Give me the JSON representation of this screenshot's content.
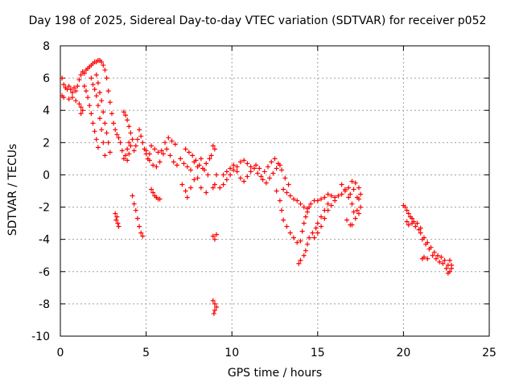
{
  "chart_data": {
    "type": "scatter",
    "title": "Day 198 of 2025, Sidereal Day-to-day VTEC variation (SDTVAR) for receiver p052",
    "xlabel": "GPS time / hours",
    "ylabel": "SDTVAR / TECUs",
    "xlim": [
      0,
      25
    ],
    "ylim": [
      -10,
      8
    ],
    "xticks": [
      "0",
      "5",
      "10",
      "15",
      "20",
      "25"
    ],
    "yticks": [
      "8",
      "6",
      "4",
      "2",
      "0",
      "-2",
      "-4",
      "-6",
      "-8",
      "-10"
    ],
    "grid": true,
    "marker": "+",
    "color": "#ff0000",
    "series": [
      {
        "name": "SDTVAR",
        "points": [
          [
            0.1,
            6.0
          ],
          [
            0.2,
            5.6
          ],
          [
            0.3,
            5.4
          ],
          [
            0.4,
            5.3
          ],
          [
            0.5,
            5.5
          ],
          [
            0.6,
            5.3
          ],
          [
            0.7,
            5.1
          ],
          [
            0.8,
            5.4
          ],
          [
            0.9,
            5.2
          ],
          [
            1.0,
            5.5
          ],
          [
            1.1,
            5.9
          ],
          [
            1.2,
            6.2
          ],
          [
            1.3,
            6.4
          ],
          [
            1.4,
            6.3
          ],
          [
            1.5,
            6.5
          ],
          [
            1.6,
            6.6
          ],
          [
            1.7,
            6.7
          ],
          [
            1.8,
            6.8
          ],
          [
            1.9,
            6.9
          ],
          [
            2.0,
            7.0
          ],
          [
            2.1,
            7.0
          ],
          [
            2.2,
            7.1
          ],
          [
            2.3,
            7.1
          ],
          [
            2.4,
            7.0
          ],
          [
            2.5,
            6.8
          ],
          [
            2.6,
            6.5
          ],
          [
            2.7,
            6.0
          ],
          [
            2.8,
            5.2
          ],
          [
            2.9,
            4.5
          ],
          [
            3.0,
            3.8
          ],
          [
            3.1,
            3.2
          ],
          [
            3.2,
            2.8
          ],
          [
            3.3,
            2.5
          ],
          [
            3.4,
            2.3
          ],
          [
            3.5,
            2.0
          ],
          [
            3.6,
            1.5
          ],
          [
            3.7,
            1.0
          ],
          [
            3.8,
            1.2
          ],
          [
            3.9,
            1.6
          ],
          [
            4.0,
            2.0
          ],
          [
            0.1,
            4.9
          ],
          [
            0.2,
            4.8
          ],
          [
            0.5,
            4.7
          ],
          [
            0.7,
            4.8
          ],
          [
            0.9,
            4.6
          ],
          [
            1.1,
            4.4
          ],
          [
            1.2,
            4.2
          ],
          [
            1.3,
            4.0
          ],
          [
            1.2,
            3.8
          ],
          [
            1.4,
            5.5
          ],
          [
            1.5,
            5.2
          ],
          [
            1.6,
            4.8
          ],
          [
            1.7,
            4.3
          ],
          [
            1.8,
            3.8
          ],
          [
            1.9,
            3.2
          ],
          [
            2.0,
            2.7
          ],
          [
            2.1,
            2.2
          ],
          [
            2.2,
            1.7
          ],
          [
            2.1,
            6.2
          ],
          [
            2.2,
            5.7
          ],
          [
            2.3,
            5.1
          ],
          [
            2.4,
            4.6
          ],
          [
            2.5,
            3.9
          ],
          [
            2.6,
            3.2
          ],
          [
            2.7,
            2.6
          ],
          [
            2.8,
            2.0
          ],
          [
            2.9,
            1.4
          ],
          [
            2.6,
            1.2
          ],
          [
            1.8,
            6.0
          ],
          [
            1.9,
            5.6
          ],
          [
            2.0,
            5.3
          ],
          [
            2.1,
            4.9
          ],
          [
            2.2,
            4.3
          ],
          [
            2.3,
            3.5
          ],
          [
            2.4,
            2.8
          ],
          [
            2.5,
            2.0
          ],
          [
            3.2,
            -2.4
          ],
          [
            3.3,
            -2.6
          ],
          [
            3.25,
            -2.8
          ],
          [
            3.35,
            -3.0
          ],
          [
            3.4,
            -3.2
          ],
          [
            3.7,
            3.9
          ],
          [
            3.8,
            3.7
          ],
          [
            3.9,
            3.4
          ],
          [
            4.0,
            3.0
          ],
          [
            4.1,
            2.6
          ],
          [
            4.2,
            2.2
          ],
          [
            4.1,
            1.8
          ],
          [
            4.0,
            1.3
          ],
          [
            3.9,
            0.9
          ],
          [
            4.3,
            1.5
          ],
          [
            4.4,
            1.8
          ],
          [
            4.5,
            2.2
          ],
          [
            4.6,
            2.8
          ],
          [
            4.7,
            2.4
          ],
          [
            4.8,
            2.0
          ],
          [
            4.9,
            1.6
          ],
          [
            5.0,
            1.3
          ],
          [
            5.1,
            1.0
          ],
          [
            5.2,
            1.3
          ],
          [
            4.2,
            -1.3
          ],
          [
            4.3,
            -1.8
          ],
          [
            4.4,
            -2.2
          ],
          [
            4.5,
            -2.7
          ],
          [
            4.6,
            -3.2
          ],
          [
            4.7,
            -3.6
          ],
          [
            4.8,
            -3.8
          ],
          [
            5.0,
            1.5
          ],
          [
            5.2,
            0.9
          ],
          [
            5.4,
            0.6
          ],
          [
            5.6,
            0.5
          ],
          [
            5.8,
            0.8
          ],
          [
            6.0,
            1.3
          ],
          [
            6.2,
            1.6
          ],
          [
            6.4,
            1.2
          ],
          [
            6.6,
            0.8
          ],
          [
            6.8,
            0.6
          ],
          [
            5.3,
            1.8
          ],
          [
            5.5,
            1.6
          ],
          [
            5.7,
            1.4
          ],
          [
            5.9,
            1.5
          ],
          [
            6.1,
            2.0
          ],
          [
            6.3,
            2.3
          ],
          [
            6.5,
            2.1
          ],
          [
            6.7,
            1.9
          ],
          [
            5.3,
            -0.9
          ],
          [
            5.4,
            -1.1
          ],
          [
            5.5,
            -1.3
          ],
          [
            5.6,
            -1.4
          ],
          [
            5.7,
            -1.5
          ],
          [
            5.8,
            -1.5
          ],
          [
            7.0,
            1.0
          ],
          [
            7.2,
            0.7
          ],
          [
            7.4,
            0.5
          ],
          [
            7.6,
            0.3
          ],
          [
            7.8,
            0.8
          ],
          [
            8.0,
            0.5
          ],
          [
            8.2,
            1.0
          ],
          [
            8.4,
            0.3
          ],
          [
            8.6,
            0.0
          ],
          [
            8.8,
            1.2
          ],
          [
            7.3,
            1.6
          ],
          [
            7.5,
            1.4
          ],
          [
            7.7,
            1.2
          ],
          [
            7.9,
            0.9
          ],
          [
            8.1,
            0.6
          ],
          [
            8.3,
            0.4
          ],
          [
            8.5,
            0.7
          ],
          [
            8.7,
            1.0
          ],
          [
            8.9,
            1.8
          ],
          [
            9.0,
            1.6
          ],
          [
            7.1,
            -0.6
          ],
          [
            7.3,
            -1.0
          ],
          [
            7.4,
            -1.4
          ],
          [
            7.6,
            -0.8
          ],
          [
            7.8,
            -0.3
          ],
          [
            8.0,
            -0.2
          ],
          [
            8.2,
            -0.8
          ],
          [
            8.5,
            -1.1
          ],
          [
            8.9,
            -0.8
          ],
          [
            9.0,
            -0.6
          ],
          [
            9.1,
            0.0
          ],
          [
            8.9,
            -3.8
          ],
          [
            9.0,
            -4.0
          ],
          [
            9.1,
            -3.7
          ],
          [
            8.9,
            -7.8
          ],
          [
            9.0,
            -8.0
          ],
          [
            9.1,
            -8.2
          ],
          [
            9.0,
            -8.4
          ],
          [
            8.95,
            -8.6
          ],
          [
            9.3,
            -0.8
          ],
          [
            9.5,
            -0.6
          ],
          [
            9.7,
            -0.3
          ],
          [
            9.9,
            0.0
          ],
          [
            10.1,
            0.3
          ],
          [
            10.3,
            0.5
          ],
          [
            10.5,
            0.8
          ],
          [
            10.7,
            0.9
          ],
          [
            10.9,
            0.7
          ],
          [
            11.1,
            0.5
          ],
          [
            9.5,
            0.0
          ],
          [
            9.7,
            0.2
          ],
          [
            9.9,
            0.4
          ],
          [
            10.1,
            0.6
          ],
          [
            10.3,
            0.2
          ],
          [
            10.5,
            -0.2
          ],
          [
            10.7,
            -0.4
          ],
          [
            10.9,
            -0.1
          ],
          [
            11.1,
            0.2
          ],
          [
            11.3,
            0.4
          ],
          [
            11.5,
            0.1
          ],
          [
            11.7,
            -0.1
          ],
          [
            11.9,
            0.2
          ],
          [
            12.1,
            0.5
          ],
          [
            12.3,
            0.8
          ],
          [
            12.5,
            1.0
          ],
          [
            12.7,
            0.7
          ],
          [
            12.9,
            0.3
          ],
          [
            13.1,
            -0.2
          ],
          [
            13.3,
            -0.6
          ],
          [
            11.4,
            0.6
          ],
          [
            11.6,
            0.4
          ],
          [
            11.8,
            -0.3
          ],
          [
            12.0,
            -0.5
          ],
          [
            12.2,
            -0.2
          ],
          [
            12.4,
            0.1
          ],
          [
            12.6,
            0.4
          ],
          [
            12.8,
            0.6
          ],
          [
            12.6,
            -1.0
          ],
          [
            12.8,
            -1.6
          ],
          [
            12.9,
            -2.2
          ],
          [
            13.0,
            -2.8
          ],
          [
            13.2,
            -3.2
          ],
          [
            13.4,
            -3.6
          ],
          [
            13.6,
            -3.9
          ],
          [
            13.8,
            -4.2
          ],
          [
            14.0,
            -4.1
          ],
          [
            14.1,
            -3.5
          ],
          [
            13.0,
            -0.9
          ],
          [
            13.2,
            -1.1
          ],
          [
            13.4,
            -1.3
          ],
          [
            13.6,
            -1.5
          ],
          [
            13.8,
            -1.6
          ],
          [
            14.0,
            -1.8
          ],
          [
            14.2,
            -2.0
          ],
          [
            14.4,
            -2.1
          ],
          [
            13.9,
            -5.5
          ],
          [
            14.0,
            -5.3
          ],
          [
            14.2,
            -3.0
          ],
          [
            14.3,
            -2.6
          ],
          [
            14.4,
            -2.3
          ],
          [
            14.5,
            -2.0
          ],
          [
            14.6,
            -1.8
          ],
          [
            14.8,
            -1.6
          ],
          [
            14.2,
            -5.0
          ],
          [
            14.3,
            -4.7
          ],
          [
            14.4,
            -4.3
          ],
          [
            14.5,
            -3.9
          ],
          [
            14.7,
            -3.6
          ],
          [
            14.9,
            -3.3
          ],
          [
            15.0,
            -3.0
          ],
          [
            15.2,
            -2.6
          ],
          [
            15.4,
            -2.2
          ],
          [
            15.6,
            -1.8
          ],
          [
            14.8,
            -3.9
          ],
          [
            15.0,
            -3.6
          ],
          [
            15.2,
            -3.2
          ],
          [
            15.4,
            -2.7
          ],
          [
            15.6,
            -2.2
          ],
          [
            15.8,
            -1.9
          ],
          [
            16.0,
            -1.6
          ],
          [
            15.0,
            -1.6
          ],
          [
            15.2,
            -1.5
          ],
          [
            15.4,
            -1.4
          ],
          [
            15.6,
            -1.2
          ],
          [
            15.8,
            -1.3
          ],
          [
            16.0,
            -1.4
          ],
          [
            16.2,
            -1.3
          ],
          [
            16.4,
            -1.2
          ],
          [
            16.6,
            -1.0
          ],
          [
            16.8,
            -0.8
          ],
          [
            16.9,
            -1.2
          ],
          [
            17.0,
            -1.8
          ],
          [
            17.1,
            -2.3
          ],
          [
            17.2,
            -2.7
          ],
          [
            17.3,
            -2.2
          ],
          [
            17.4,
            -1.5
          ],
          [
            17.0,
            -0.4
          ],
          [
            17.2,
            -0.5
          ],
          [
            17.4,
            -0.8
          ],
          [
            17.5,
            -1.2
          ],
          [
            17.5,
            -2.0
          ],
          [
            17.4,
            -2.4
          ],
          [
            17.3,
            -1.4
          ],
          [
            17.1,
            -0.9
          ],
          [
            16.4,
            -0.6
          ],
          [
            16.6,
            -0.9
          ],
          [
            16.8,
            -1.4
          ],
          [
            17.0,
            -3.1
          ],
          [
            16.7,
            -2.8
          ],
          [
            16.9,
            -3.1
          ],
          [
            20.0,
            -1.9
          ],
          [
            20.1,
            -2.0
          ],
          [
            20.2,
            -2.2
          ],
          [
            20.3,
            -2.4
          ],
          [
            20.4,
            -2.6
          ],
          [
            20.2,
            -2.9
          ],
          [
            20.3,
            -3.1
          ],
          [
            20.5,
            -3.0
          ],
          [
            20.7,
            -3.2
          ],
          [
            20.9,
            -3.4
          ],
          [
            21.0,
            -3.6
          ],
          [
            21.2,
            -3.9
          ],
          [
            21.4,
            -4.2
          ],
          [
            21.6,
            -4.5
          ],
          [
            21.8,
            -4.8
          ],
          [
            22.0,
            -5.0
          ],
          [
            22.2,
            -5.1
          ],
          [
            22.4,
            -5.3
          ],
          [
            22.6,
            -5.6
          ],
          [
            22.8,
            -5.8
          ],
          [
            21.1,
            -4.0
          ],
          [
            21.3,
            -4.3
          ],
          [
            21.5,
            -4.6
          ],
          [
            21.7,
            -5.0
          ],
          [
            21.9,
            -5.2
          ],
          [
            22.1,
            -5.4
          ],
          [
            22.3,
            -5.5
          ],
          [
            22.5,
            -5.8
          ],
          [
            22.7,
            -6.0
          ],
          [
            20.5,
            -2.7
          ],
          [
            20.6,
            -2.9
          ],
          [
            20.8,
            -3.0
          ],
          [
            21.0,
            -3.3
          ],
          [
            21.1,
            -5.2
          ],
          [
            21.2,
            -5.1
          ],
          [
            21.4,
            -5.2
          ],
          [
            22.7,
            -5.3
          ],
          [
            22.8,
            -5.6
          ],
          [
            22.6,
            -6.1
          ]
        ]
      }
    ]
  }
}
